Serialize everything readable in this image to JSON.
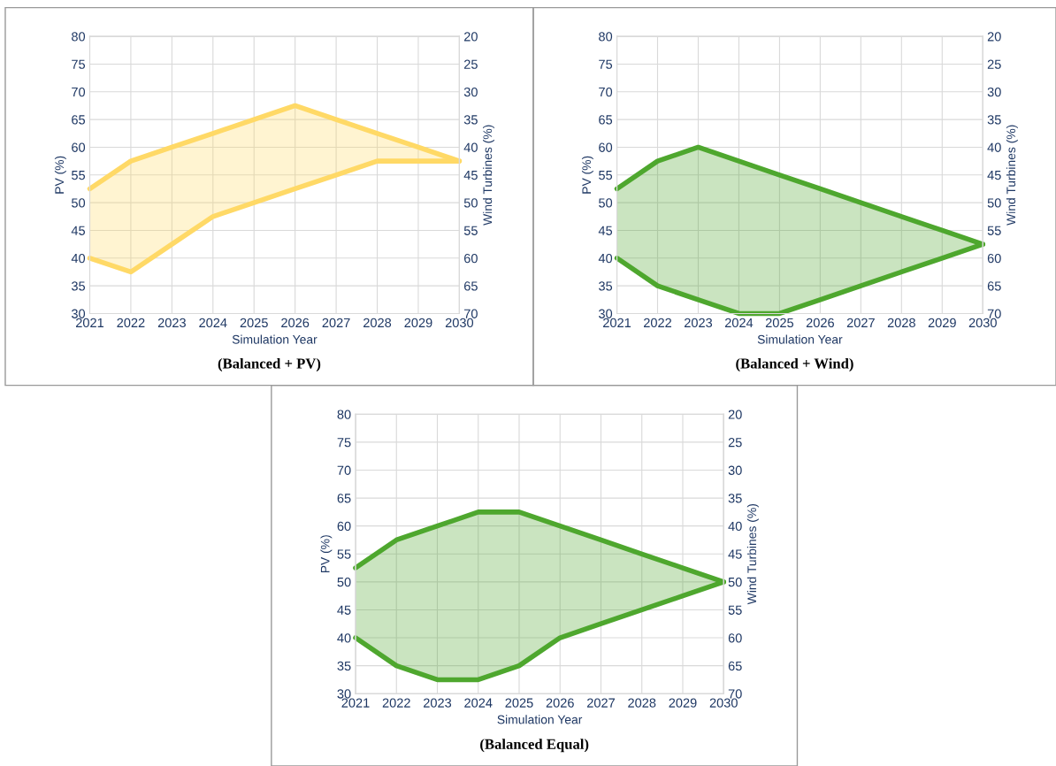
{
  "chart_data": [
    {
      "type": "line",
      "title": "(Balanced + PV)",
      "xlabel": "Simulation Year",
      "ylabel": "PV (%)",
      "y2label": "Wind Turbines (%)",
      "x": [
        2021,
        2022,
        2023,
        2024,
        2025,
        2026,
        2027,
        2028,
        2029,
        2030
      ],
      "xlim": [
        2021,
        2030
      ],
      "xticks": [
        2021,
        2022,
        2023,
        2024,
        2025,
        2026,
        2027,
        2028,
        2029,
        2030
      ],
      "ylim": [
        30,
        80
      ],
      "yticks": [
        30,
        35,
        40,
        45,
        50,
        55,
        60,
        65,
        70,
        75,
        80
      ],
      "y2lim": [
        70,
        20
      ],
      "y2ticks": [
        20,
        25,
        30,
        35,
        40,
        45,
        50,
        55,
        60,
        65,
        70
      ],
      "grid": true,
      "legend": false,
      "series": [
        {
          "color": "#ffd966",
          "values": [
            52.5,
            57.5,
            60,
            62.5,
            65,
            67.5,
            65,
            62.5,
            60,
            57.5
          ],
          "lower": [
            40,
            37.5,
            42.5,
            47.5,
            50,
            52.5,
            55,
            57.5,
            57.5,
            57.5
          ],
          "upper": [
            52.5,
            57.5,
            60,
            62.5,
            65,
            67.5,
            65,
            62.5,
            60,
            57.5
          ]
        },
        {
          "color": "#ffd966",
          "values": [
            40,
            37.5,
            42.5,
            47.5,
            50,
            52.5,
            55,
            57.5,
            57.5,
            57.5
          ]
        }
      ]
    },
    {
      "type": "line",
      "title": "(Balanced + Wind)",
      "xlabel": "Simulation Year",
      "ylabel": "PV (%)",
      "y2label": "Wind Turbines (%)",
      "x": [
        2021,
        2022,
        2023,
        2024,
        2025,
        2026,
        2027,
        2028,
        2029,
        2030
      ],
      "xlim": [
        2021,
        2030
      ],
      "xticks": [
        2021,
        2022,
        2023,
        2024,
        2025,
        2026,
        2027,
        2028,
        2029,
        2030
      ],
      "ylim": [
        30,
        80
      ],
      "yticks": [
        30,
        35,
        40,
        45,
        50,
        55,
        60,
        65,
        70,
        75,
        80
      ],
      "y2lim": [
        70,
        20
      ],
      "y2ticks": [
        20,
        25,
        30,
        35,
        40,
        45,
        50,
        55,
        60,
        65,
        70
      ],
      "grid": true,
      "legend": false,
      "series": [
        {
          "color": "#4ea72e",
          "values": [
            52.5,
            57.5,
            60,
            57.5,
            55,
            52.5,
            50,
            47.5,
            45,
            42.5
          ],
          "lower": [
            40,
            35,
            32.5,
            30,
            30,
            32.5,
            35,
            37.5,
            40,
            42.5
          ],
          "upper": [
            52.5,
            57.5,
            60,
            57.5,
            55,
            52.5,
            50,
            47.5,
            45,
            42.5
          ]
        },
        {
          "color": "#4ea72e",
          "values": [
            40,
            35,
            32.5,
            30,
            30,
            32.5,
            35,
            37.5,
            40,
            42.5
          ]
        }
      ]
    },
    {
      "type": "line",
      "title": "(Balanced Equal)",
      "xlabel": "Simulation Year",
      "ylabel": "PV (%)",
      "y2label": "Wind Turbines (%)",
      "x": [
        2021,
        2022,
        2023,
        2024,
        2025,
        2026,
        2027,
        2028,
        2029,
        2030
      ],
      "xlim": [
        2021,
        2030
      ],
      "xticks": [
        2021,
        2022,
        2023,
        2024,
        2025,
        2026,
        2027,
        2028,
        2029,
        2030
      ],
      "ylim": [
        30,
        80
      ],
      "yticks": [
        30,
        35,
        40,
        45,
        50,
        55,
        60,
        65,
        70,
        75,
        80
      ],
      "y2lim": [
        70,
        20
      ],
      "y2ticks": [
        20,
        25,
        30,
        35,
        40,
        45,
        50,
        55,
        60,
        65,
        70
      ],
      "grid": true,
      "legend": false,
      "series": [
        {
          "color": "#4ea72e",
          "values": [
            52.5,
            57.5,
            60,
            62.5,
            62.5,
            60,
            57.5,
            55,
            52.5,
            50
          ],
          "lower": [
            40,
            35,
            32.5,
            32.5,
            35,
            40,
            42.5,
            45,
            47.5,
            50
          ],
          "upper": [
            52.5,
            57.5,
            60,
            62.5,
            62.5,
            60,
            57.5,
            55,
            52.5,
            50
          ]
        },
        {
          "color": "#4ea72e",
          "values": [
            40,
            35,
            32.5,
            32.5,
            35,
            40,
            42.5,
            45,
            47.5,
            50
          ]
        }
      ]
    }
  ]
}
